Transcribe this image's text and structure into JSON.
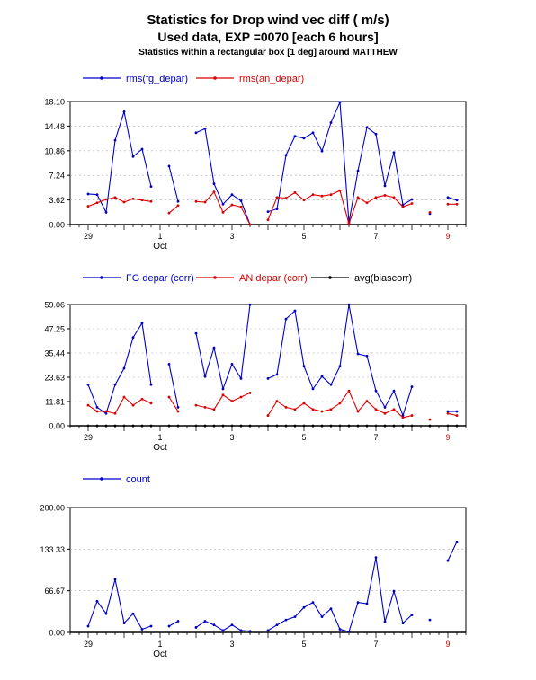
{
  "title": {
    "line1": "Statistics for  Drop wind vec diff ( m/s)",
    "line2": "Used data, EXP =0070 [each  6 hours]",
    "line3": "Statistics within a rectangular box [1 deg] around MATTHEW"
  },
  "x_tick_labels": [
    {
      "label": "29",
      "x": 0,
      "red": false
    },
    {
      "label": "1",
      "x": 8,
      "red": false
    },
    {
      "label": "3",
      "x": 16,
      "red": false
    },
    {
      "label": "5",
      "x": 24,
      "red": false
    },
    {
      "label": "7",
      "x": 32,
      "red": false
    },
    {
      "label": "9",
      "x": 40,
      "red": true
    }
  ],
  "x_month_label": {
    "label": "Oct",
    "x": 8
  },
  "colors": {
    "blue": "#0000cc",
    "red": "#dd0000",
    "black": "#000000",
    "axis": "#000000",
    "grid": "#aaaaaa"
  },
  "chart_data": [
    {
      "type": "line",
      "xlim": [
        -2,
        42
      ],
      "ylim": [
        0,
        18.1
      ],
      "yticks": [
        "0.00",
        "3.62",
        "7.24",
        "10.86",
        "14.48",
        "18.10"
      ],
      "series": [
        {
          "name": "rms(fg_depar)",
          "color": "blue",
          "values": [
            4.5,
            4.4,
            1.8,
            12.4,
            16.6,
            10.0,
            11.1,
            5.6,
            null,
            8.6,
            3.4,
            null,
            13.5,
            14.1,
            6.0,
            3.0,
            4.4,
            3.5,
            0.0,
            null,
            1.9,
            2.3,
            10.2,
            13.0,
            12.7,
            13.5,
            10.8,
            15.0,
            18.0,
            0.3,
            7.9,
            14.3,
            13.3,
            5.7,
            10.6,
            2.9,
            3.7,
            null,
            1.6,
            null,
            4.0,
            3.6
          ]
        },
        {
          "name": "rms(an_depar)",
          "color": "red",
          "values": [
            2.7,
            3.2,
            3.7,
            4.0,
            3.3,
            3.8,
            3.6,
            3.4,
            null,
            1.7,
            2.8,
            null,
            3.4,
            3.3,
            4.8,
            1.8,
            2.9,
            2.6,
            0.0,
            null,
            0.7,
            4.0,
            3.9,
            4.7,
            3.6,
            4.4,
            4.2,
            4.4,
            5.0,
            0.1,
            4.0,
            3.2,
            4.0,
            4.3,
            4.0,
            2.6,
            3.1,
            null,
            1.8,
            null,
            3.0,
            3.0
          ]
        }
      ]
    },
    {
      "type": "line",
      "xlim": [
        -2,
        42
      ],
      "ylim": [
        0,
        59.06
      ],
      "yticks": [
        "0.00",
        "11.81",
        "23.63",
        "35.44",
        "47.25",
        "59.06"
      ],
      "series": [
        {
          "name": "FG depar (corr)",
          "color": "blue",
          "values": [
            20,
            9,
            6,
            20,
            28,
            43,
            50,
            20,
            null,
            30,
            9,
            null,
            45,
            24,
            38,
            18,
            30,
            23,
            59,
            null,
            23,
            25,
            52,
            56,
            29,
            18,
            24,
            20,
            29,
            59,
            35,
            34,
            17,
            9,
            17,
            5,
            19,
            null,
            null,
            null,
            7,
            7
          ]
        },
        {
          "name": "AN depar (corr)",
          "color": "red",
          "values": [
            10,
            7,
            7,
            6,
            14,
            10,
            13,
            11,
            null,
            14,
            7,
            null,
            10,
            9,
            8,
            15,
            12,
            14,
            16,
            null,
            5,
            12,
            9,
            8,
            11,
            8,
            7,
            8,
            11,
            17,
            7,
            12,
            8,
            6,
            8,
            4,
            5,
            null,
            3,
            null,
            6,
            5
          ]
        },
        {
          "name": "avg(biascorr)",
          "color": "black",
          "values": [
            0,
            0,
            0,
            0,
            0,
            0,
            0,
            0,
            null,
            0,
            0,
            null,
            0,
            0,
            0,
            0,
            0,
            0,
            0,
            null,
            0,
            0,
            0,
            0,
            0,
            0,
            0,
            0,
            0,
            0,
            0,
            0,
            0,
            0,
            0,
            0,
            0,
            null,
            0,
            null,
            0,
            0
          ]
        }
      ]
    },
    {
      "type": "line",
      "xlim": [
        -2,
        42
      ],
      "ylim": [
        0,
        200
      ],
      "yticks": [
        "0.00",
        "66.67",
        "133.33",
        "200.00"
      ],
      "series": [
        {
          "name": "count",
          "color": "blue",
          "values": [
            10,
            50,
            30,
            85,
            15,
            30,
            5,
            10,
            null,
            10,
            18,
            null,
            8,
            18,
            12,
            3,
            12,
            3,
            2,
            null,
            3,
            12,
            20,
            25,
            40,
            48,
            25,
            38,
            5,
            1,
            48,
            46,
            120,
            17,
            66,
            15,
            28,
            null,
            20,
            null,
            115,
            145
          ]
        }
      ]
    }
  ]
}
